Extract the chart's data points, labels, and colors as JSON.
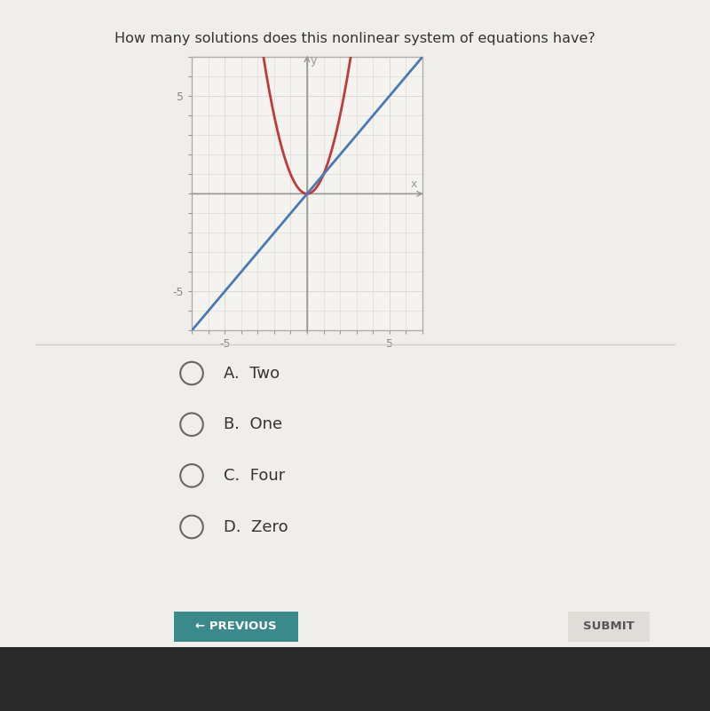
{
  "title": "How many solutions does this nonlinear system of equations have?",
  "title_fontsize": 11.5,
  "bg_color": "#d8d5d0",
  "white_panel_color": "#f0eeeb",
  "graph_bg_color": "#f5f3f0",
  "graph_border_color": "#b0ada8",
  "parabola_color": "#c0393b",
  "line_color": "#4a7ab5",
  "axis_color": "#999999",
  "grid_color": "#d8d5d0",
  "tick_label_color": "#888888",
  "xlim": [
    -7,
    7
  ],
  "ylim": [
    -7,
    7
  ],
  "xticks": [
    -5,
    5
  ],
  "yticks": [
    -5,
    5
  ],
  "choices": [
    "A.  Two",
    "B.  One",
    "C.  Four",
    "D.  Zero"
  ],
  "choice_fontsize": 13,
  "submit_label": "SUBMIT",
  "previous_label": "← PREVIOUS",
  "button_color": "#3a8a8c",
  "button_text_color": "#ffffff",
  "divider_color": "#cccccc",
  "bottom_bar_color": "#2a2a2a"
}
